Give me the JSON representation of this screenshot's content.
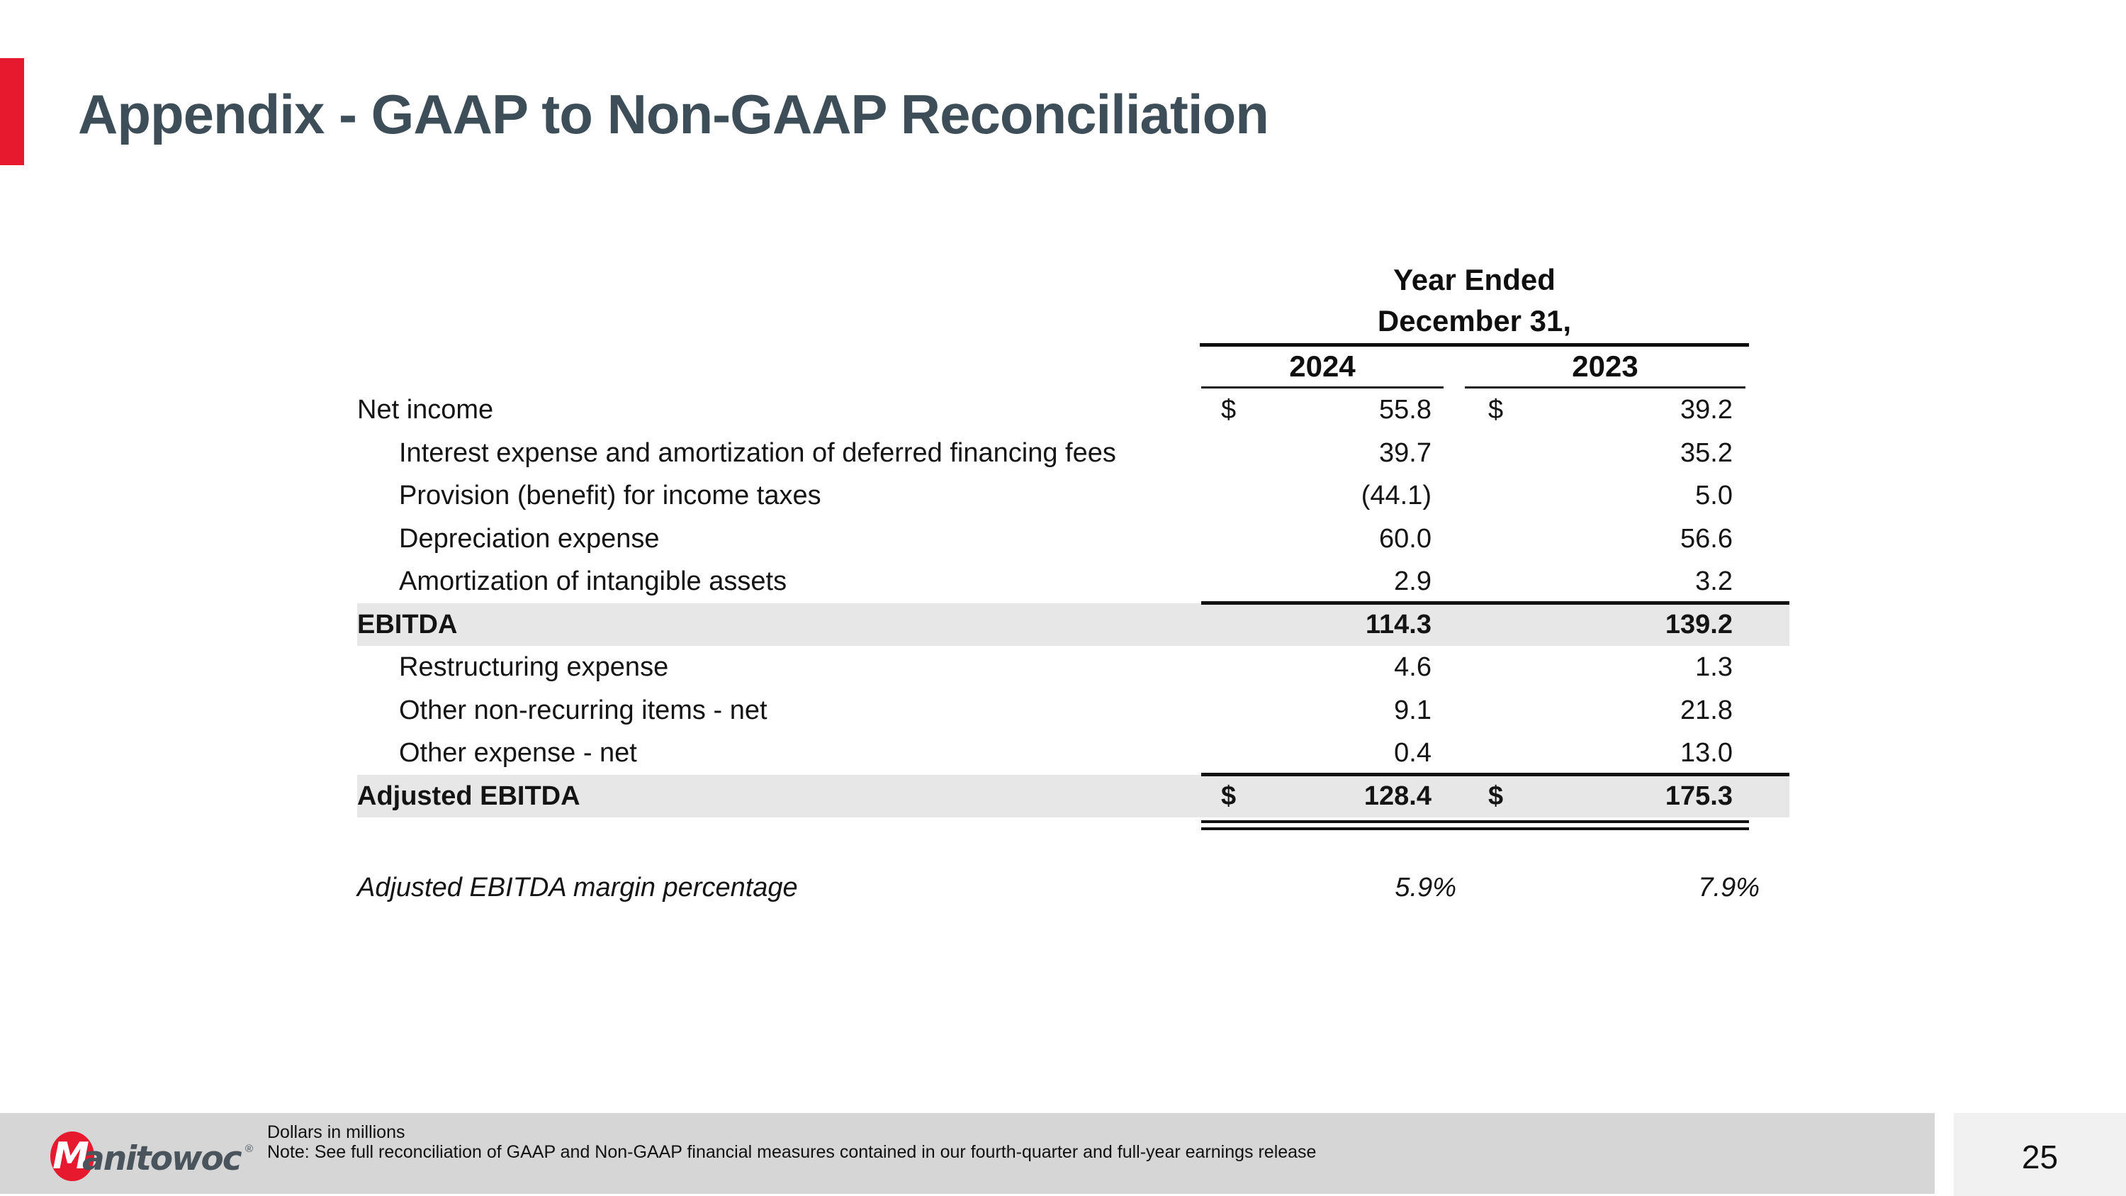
{
  "slide": {
    "title": "Appendix - GAAP to Non-GAAP Reconciliation",
    "page_number": "25",
    "accent_color": "#e6192e",
    "title_color": "#3e4e59"
  },
  "logo": {
    "m": "M",
    "wordmark": "anitowoc",
    "registered": "®"
  },
  "footnote": {
    "line1": "Dollars in millions",
    "line2": "Note: See full reconciliation of GAAP and Non-GAAP financial measures contained in our fourth-quarter and full-year earnings release"
  },
  "table": {
    "header": {
      "period_line1": "Year Ended",
      "period_line2": "December 31,",
      "col1": "2024",
      "col2": "2023"
    },
    "rows": [
      {
        "label": "Net income",
        "cur1": "$",
        "v1": "55.8",
        "cur2": "$",
        "v2": "39.2"
      },
      {
        "label": "Interest expense and amortization of deferred financing fees",
        "v1": "39.7",
        "v2": "35.2"
      },
      {
        "label": "Provision (benefit) for income taxes",
        "v1": "(44.1)",
        "v2": "5.0"
      },
      {
        "label": "Depreciation expense",
        "v1": "60.0",
        "v2": "56.6"
      },
      {
        "label": "Amortization of intangible assets",
        "v1": "2.9",
        "v2": "3.2"
      },
      {
        "label": "EBITDA",
        "v1": "114.3",
        "v2": "139.2"
      },
      {
        "label": "Restructuring expense",
        "v1": "4.6",
        "v2": "1.3"
      },
      {
        "label": "Other non-recurring items - net",
        "v1": "9.1",
        "v2": "21.8"
      },
      {
        "label": "Other expense - net",
        "v1": "0.4",
        "v2": "13.0"
      },
      {
        "label": "Adjusted EBITDA",
        "cur1": "$",
        "v1": "128.4",
        "cur2": "$",
        "v2": "175.3"
      },
      {
        "label": "Adjusted EBITDA margin percentage",
        "v1": "5.9%",
        "v2": "7.9%"
      }
    ]
  }
}
